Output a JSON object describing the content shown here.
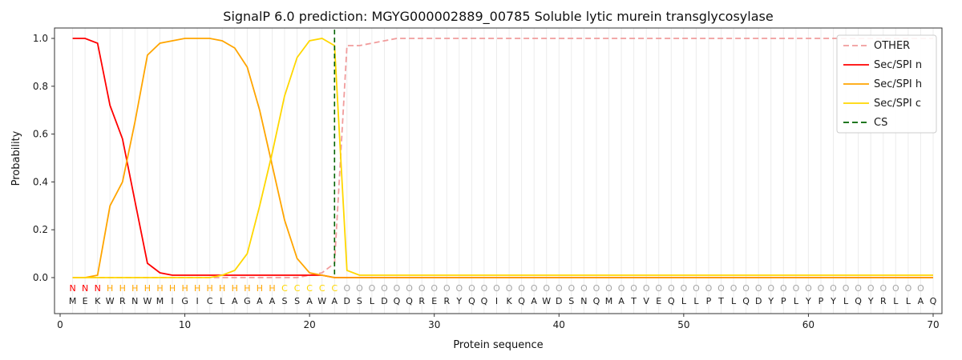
{
  "chart_data": {
    "type": "line",
    "title": "SignalP 6.0 prediction: MGYG000002889_00785 Soluble lytic murein transglycosylase",
    "xlabel": "Protein sequence",
    "ylabel": "Probability",
    "xlim": [
      0,
      70
    ],
    "ylim": [
      0.0,
      1.0
    ],
    "xticks": [
      0,
      10,
      20,
      30,
      40,
      50,
      60,
      70
    ],
    "yticks": [
      0.0,
      0.2,
      0.4,
      0.6,
      0.8,
      1.0
    ],
    "grid": "vertical line per residue",
    "legend_position": "upper right",
    "x": [
      1,
      2,
      3,
      4,
      5,
      6,
      7,
      8,
      9,
      10,
      11,
      12,
      13,
      14,
      15,
      16,
      17,
      18,
      19,
      20,
      21,
      22,
      23,
      24,
      25,
      26,
      27,
      28,
      29,
      30,
      31,
      32,
      33,
      34,
      35,
      36,
      37,
      38,
      39,
      40,
      41,
      42,
      43,
      44,
      45,
      46,
      47,
      48,
      49,
      50,
      51,
      52,
      53,
      54,
      55,
      56,
      57,
      58,
      59,
      60,
      61,
      62,
      63,
      64,
      65,
      66,
      67,
      68,
      69,
      70
    ],
    "series": [
      {
        "name": "OTHER",
        "color": "#f19c9c",
        "dashed": true,
        "values": [
          0,
          0,
          0,
          0,
          0,
          0,
          0,
          0,
          0,
          0,
          0,
          0,
          0,
          0,
          0,
          0,
          0,
          0,
          0,
          0.01,
          0.02,
          0.06,
          0.97,
          0.97,
          0.98,
          0.99,
          1.0,
          1.0,
          1.0,
          1.0,
          1.0,
          1.0,
          1.0,
          1.0,
          1.0,
          1.0,
          1.0,
          1.0,
          1.0,
          1.0,
          1.0,
          1.0,
          1.0,
          1.0,
          1.0,
          1.0,
          1.0,
          1.0,
          1.0,
          1.0,
          1.0,
          1.0,
          1.0,
          1.0,
          1.0,
          1.0,
          1.0,
          1.0,
          1.0,
          1.0,
          1.0,
          1.0,
          1.0,
          1.0,
          1.0,
          1.0,
          1.0,
          1.0,
          1.0,
          1.0
        ]
      },
      {
        "name": "Sec/SPI n",
        "color": "#ff0000",
        "dashed": false,
        "values": [
          1.0,
          1.0,
          0.98,
          0.72,
          0.58,
          0.32,
          0.06,
          0.02,
          0.01,
          0.01,
          0.01,
          0.01,
          0.01,
          0.01,
          0.01,
          0.01,
          0.01,
          0.01,
          0.01,
          0.01,
          0.01,
          0,
          0,
          0,
          0,
          0,
          0,
          0,
          0,
          0,
          0,
          0,
          0,
          0,
          0,
          0,
          0,
          0,
          0,
          0,
          0,
          0,
          0,
          0,
          0,
          0,
          0,
          0,
          0,
          0,
          0,
          0,
          0,
          0,
          0,
          0,
          0,
          0,
          0,
          0,
          0,
          0,
          0,
          0,
          0,
          0,
          0,
          0,
          0,
          0
        ]
      },
      {
        "name": "Sec/SPI h",
        "color": "#ffa500",
        "dashed": false,
        "values": [
          0,
          0,
          0.01,
          0.3,
          0.4,
          0.65,
          0.93,
          0.98,
          0.99,
          1.0,
          1.0,
          1.0,
          0.99,
          0.96,
          0.88,
          0.7,
          0.47,
          0.24,
          0.08,
          0.02,
          0.01,
          0,
          0,
          0,
          0,
          0,
          0,
          0,
          0,
          0,
          0,
          0,
          0,
          0,
          0,
          0,
          0,
          0,
          0,
          0,
          0,
          0,
          0,
          0,
          0,
          0,
          0,
          0,
          0,
          0,
          0,
          0,
          0,
          0,
          0,
          0,
          0,
          0,
          0,
          0,
          0,
          0,
          0,
          0,
          0,
          0,
          0,
          0,
          0,
          0
        ]
      },
      {
        "name": "Sec/SPI c",
        "color": "#ffd700",
        "dashed": false,
        "values": [
          0,
          0,
          0,
          0,
          0,
          0,
          0,
          0,
          0,
          0,
          0,
          0,
          0.01,
          0.03,
          0.1,
          0.3,
          0.52,
          0.76,
          0.92,
          0.99,
          1.0,
          0.97,
          0.03,
          0.01,
          0.01,
          0.01,
          0.01,
          0.01,
          0.01,
          0.01,
          0.01,
          0.01,
          0.01,
          0.01,
          0.01,
          0.01,
          0.01,
          0.01,
          0.01,
          0.01,
          0.01,
          0.01,
          0.01,
          0.01,
          0.01,
          0.01,
          0.01,
          0.01,
          0.01,
          0.01,
          0.01,
          0.01,
          0.01,
          0.01,
          0.01,
          0.01,
          0.01,
          0.01,
          0.01,
          0.01,
          0.01,
          0.01,
          0.01,
          0.01,
          0.01,
          0.01,
          0.01,
          0.01,
          0.01,
          0.01
        ]
      }
    ],
    "cs": {
      "label": "CS",
      "position": 22,
      "color": "#006400",
      "dashed": true
    },
    "sequence": "MEKWRNWMIGICLAGAASSAWADSLDQQRERYQQIKQAWDSNQMATVEQLLPTLQDYPLYPYLQYRLLAQ",
    "region_labels": "NNNHHHHHHHHHHHHHHCCCCCOOOOOOOOOOOOOOOOOOOOOOOOOOOOOOOOOOOOOOOOOOOOOOO",
    "region_colors": {
      "N": "#ff0000",
      "H": "#ffa500",
      "C": "#ffd700",
      "O": "#a6a6a6"
    },
    "sequence_color": "#1a1a1a"
  }
}
